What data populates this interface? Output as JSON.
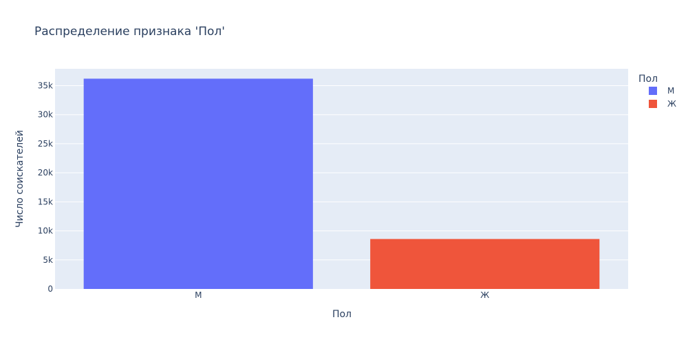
{
  "chart_data": {
    "type": "bar",
    "title": "Распределение признака 'Пол'",
    "xlabel": "Пол",
    "ylabel": "Число соискателей",
    "categories": [
      "М",
      "Ж"
    ],
    "series": [
      {
        "name": "М",
        "values": [
          36200,
          null
        ],
        "color": "#636efa"
      },
      {
        "name": "Ж",
        "values": [
          null,
          8600
        ],
        "color": "#ef553b"
      }
    ],
    "ylim": [
      0,
      37900
    ],
    "yticks": [
      0,
      5000,
      10000,
      15000,
      20000,
      25000,
      30000,
      35000
    ],
    "ytick_labels": [
      "0",
      "5k",
      "10k",
      "15k",
      "20k",
      "25k",
      "30k",
      "35k"
    ],
    "legend_title": "Пол",
    "legend_position": "top-right",
    "grid": true,
    "plot_bg": "#e5ecf6"
  }
}
